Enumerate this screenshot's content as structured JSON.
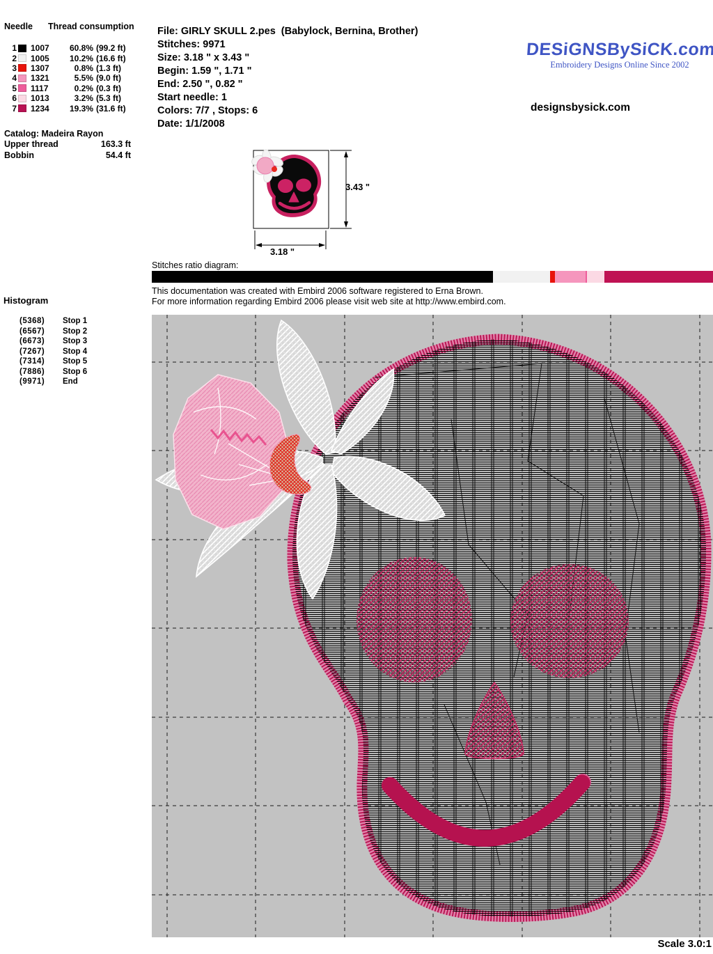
{
  "thread_table": {
    "header_col1": "Needle",
    "header_col2": "Thread consumption",
    "rows": [
      {
        "needle": "1",
        "color": "#000000",
        "code": "1007",
        "pct": "60.8%",
        "length": "(99.2 ft)"
      },
      {
        "needle": "2",
        "color": "#f1f1f1",
        "code": "1005",
        "pct": "10.2%",
        "length": "(16.6 ft)"
      },
      {
        "needle": "3",
        "color": "#e8140c",
        "code": "1307",
        "pct": "0.8%",
        "length": "(1.3 ft)"
      },
      {
        "needle": "4",
        "color": "#f596bd",
        "code": "1321",
        "pct": "5.5%",
        "length": "(9.0 ft)"
      },
      {
        "needle": "5",
        "color": "#ee5d9b",
        "code": "1117",
        "pct": "0.2%",
        "length": "(0.3 ft)"
      },
      {
        "needle": "6",
        "color": "#fbd9e4",
        "code": "1013",
        "pct": "3.2%",
        "length": "(5.3 ft)"
      },
      {
        "needle": "7",
        "color": "#b81153",
        "code": "1234",
        "pct": "19.3%",
        "length": "(31.6 ft)"
      }
    ],
    "catalog_line": "Catalog: Madeira Rayon",
    "upper_thread_label": "Upper thread",
    "upper_thread_value": "163.3 ft",
    "bobbin_label": "Bobbin",
    "bobbin_value": "54.4 ft"
  },
  "file_info": {
    "lines": [
      "File: GIRLY SKULL 2.pes  (Babylock, Bernina, Brother)",
      "Stitches: 9971",
      "Size: 3.18 \" x 3.43 \"",
      "Begin: 1.59 \", 1.71 \"",
      "End: 2.50 \", 0.82 \"",
      "Start needle: 1",
      "Colors: 7/7 , Stops: 6",
      "Date: 1/1/2008"
    ]
  },
  "branding": {
    "logo_text": "DESiGNSBySiCK.com",
    "tagline": "Embroidery Designs Online Since 2002",
    "website": "designsbysick.com",
    "logo_color": "#3f55c4"
  },
  "thumbnail": {
    "height_label": "3.43 \"",
    "width_label": "3.18 \""
  },
  "ratio_diagram": {
    "label": "Stitches ratio diagram:",
    "segments": [
      {
        "color": "#000000",
        "pct": 60.8
      },
      {
        "color": "#f1f1f1",
        "pct": 10.2
      },
      {
        "color": "#e8140c",
        "pct": 0.8
      },
      {
        "color": "#f596bd",
        "pct": 5.5
      },
      {
        "color": "#ee5d9b",
        "pct": 0.2
      },
      {
        "color": "#fbd9e4",
        "pct": 3.2
      },
      {
        "color": "#bf1253",
        "pct": 19.3
      }
    ]
  },
  "embird_note": {
    "line1": "This documentation was created with Embird 2006 software registered to Erna Brown.",
    "line2": "For more information regarding Embird 2006 please visit web site at http://www.embird.com."
  },
  "histogram": {
    "title": "Histogram",
    "entries": [
      {
        "count": "(5368)",
        "label": "Stop 1"
      },
      {
        "count": "(6567)",
        "label": "Stop 2"
      },
      {
        "count": "(6673)",
        "label": "Stop 3"
      },
      {
        "count": "(7267)",
        "label": "Stop 4"
      },
      {
        "count": "(7314)",
        "label": "Stop 5"
      },
      {
        "count": "(7886)",
        "label": "Stop 6"
      },
      {
        "count": "(9971)",
        "label": "End"
      }
    ]
  },
  "preview": {
    "scale_label": "Scale 3.0:1",
    "background": "#c2c2c2",
    "border_color": "#b5124f",
    "fill_color": "#000000"
  }
}
